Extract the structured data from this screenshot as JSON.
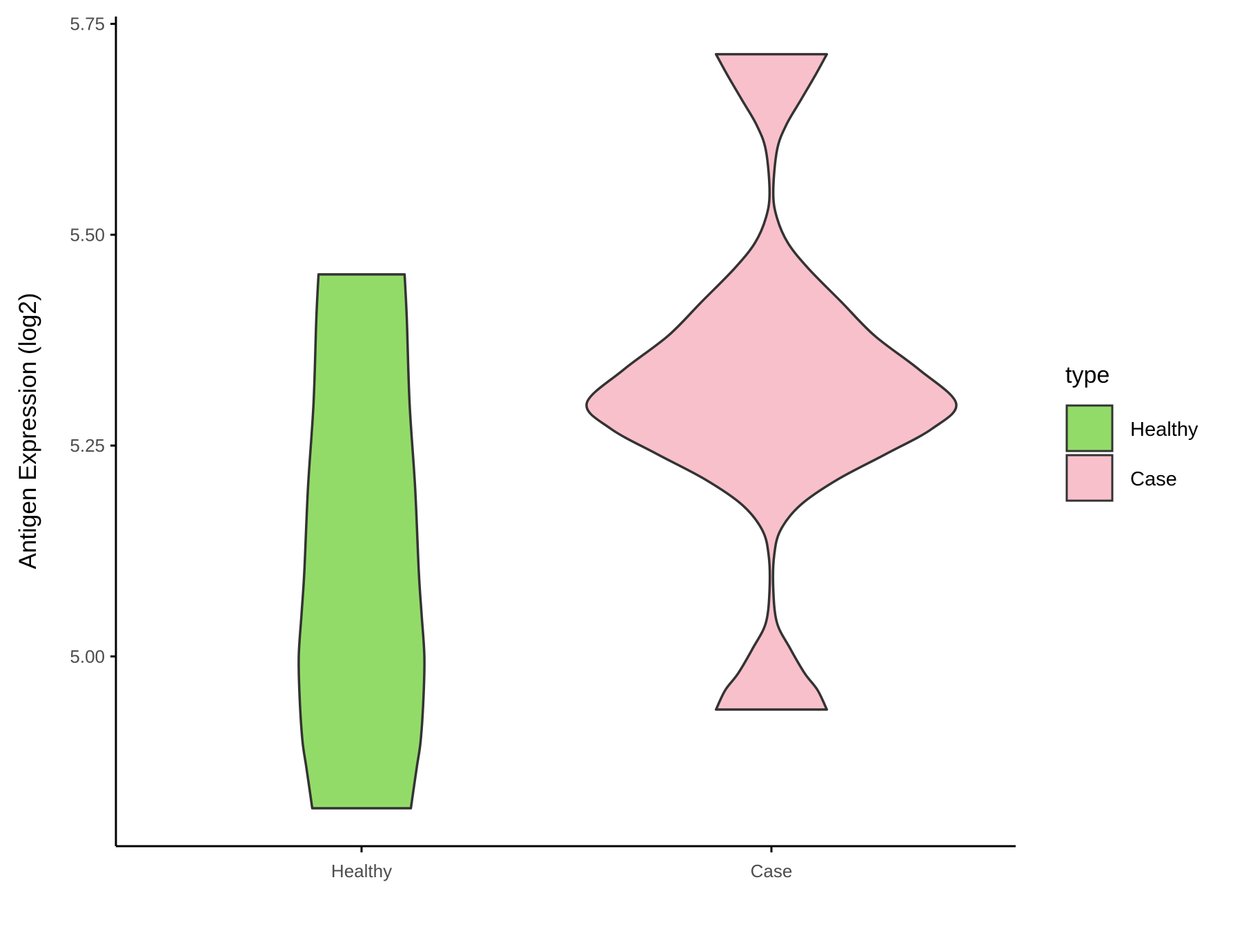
{
  "chart_data": {
    "type": "violin",
    "title": "",
    "xlabel": "",
    "ylabel": "Antigen Expression (log2)",
    "ylim": [
      4.77,
      5.765
    ],
    "yticks": [
      "5.00",
      "5.25",
      "5.50",
      "5.75"
    ],
    "ytick_values": [
      5.0,
      5.25,
      5.5,
      5.75
    ],
    "categories": [
      "Healthy",
      "Case"
    ],
    "grid": false,
    "legend": {
      "title": "type",
      "placement": "right",
      "entries": [
        "Healthy",
        "Case"
      ]
    },
    "colors": {
      "Healthy": "#93DB69",
      "Case": "#F8C0CB",
      "outline": "#333333"
    },
    "series": [
      {
        "category": "Healthy",
        "min": 4.82,
        "max": 5.453,
        "density_profile": [
          [
            4.82,
            0.267
          ],
          [
            4.84,
            0.28
          ],
          [
            4.87,
            0.3
          ],
          [
            4.9,
            0.32
          ],
          [
            4.95,
            0.335
          ],
          [
            5.0,
            0.34
          ],
          [
            5.05,
            0.325
          ],
          [
            5.1,
            0.31
          ],
          [
            5.2,
            0.29
          ],
          [
            5.3,
            0.26
          ],
          [
            5.4,
            0.245
          ],
          [
            5.453,
            0.233
          ]
        ]
      },
      {
        "category": "Case",
        "min": 4.937,
        "max": 5.714,
        "density_profile": [
          [
            4.937,
            0.3
          ],
          [
            4.96,
            0.25
          ],
          [
            4.98,
            0.18
          ],
          [
            5.01,
            0.1
          ],
          [
            5.04,
            0.03
          ],
          [
            5.08,
            0.01
          ],
          [
            5.12,
            0.015
          ],
          [
            5.15,
            0.05
          ],
          [
            5.18,
            0.16
          ],
          [
            5.21,
            0.36
          ],
          [
            5.24,
            0.62
          ],
          [
            5.27,
            0.87
          ],
          [
            5.3,
            1.0
          ],
          [
            5.34,
            0.8
          ],
          [
            5.38,
            0.56
          ],
          [
            5.42,
            0.38
          ],
          [
            5.46,
            0.2
          ],
          [
            5.49,
            0.09
          ],
          [
            5.52,
            0.03
          ],
          [
            5.55,
            0.01
          ],
          [
            5.6,
            0.03
          ],
          [
            5.63,
            0.08
          ],
          [
            5.66,
            0.16
          ],
          [
            5.69,
            0.24
          ],
          [
            5.714,
            0.3
          ]
        ]
      }
    ]
  }
}
